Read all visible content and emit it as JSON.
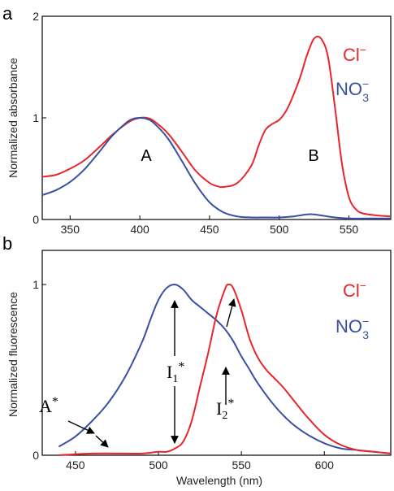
{
  "colors": {
    "red": "#e8262a",
    "blue": "#3a4fa3",
    "axis": "#000000"
  },
  "chart_data": [
    {
      "type": "line",
      "panel_label": "a",
      "xlabel": "",
      "ylabel": "Normalized absorbance",
      "xlim": [
        330,
        580
      ],
      "ylim": [
        0,
        2
      ],
      "xticks": [
        350,
        400,
        450,
        500,
        550
      ],
      "yticks": [
        0,
        1,
        2
      ],
      "legend": {
        "placement": "top-right",
        "entries": [
          {
            "label": "Cl",
            "superscript": "−",
            "subscript": "",
            "color": "#e8262a"
          },
          {
            "label": "NO",
            "superscript": "−",
            "subscript": "3",
            "color": "#3a4fa3"
          }
        ]
      },
      "annotations": [
        {
          "text": "A"
        },
        {
          "text": "B"
        }
      ],
      "series": [
        {
          "name": "Cl−",
          "color": "#e8262a",
          "x": [
            330,
            340,
            350,
            360,
            370,
            380,
            390,
            395,
            400,
            405,
            410,
            420,
            430,
            440,
            450,
            455,
            460,
            470,
            480,
            485,
            490,
            495,
            500,
            505,
            510,
            515,
            520,
            525,
            530,
            535,
            540,
            545,
            550,
            555,
            560,
            570,
            580
          ],
          "y": [
            0.42,
            0.44,
            0.5,
            0.58,
            0.7,
            0.83,
            0.94,
            0.98,
            1.0,
            1.0,
            0.97,
            0.85,
            0.67,
            0.48,
            0.36,
            0.33,
            0.32,
            0.36,
            0.53,
            0.72,
            0.88,
            0.94,
            0.98,
            1.07,
            1.22,
            1.4,
            1.62,
            1.78,
            1.78,
            1.6,
            1.1,
            0.55,
            0.22,
            0.1,
            0.06,
            0.04,
            0.03
          ]
        },
        {
          "name": "NO3−",
          "color": "#3a4fa3",
          "x": [
            330,
            340,
            350,
            360,
            370,
            380,
            390,
            395,
            400,
            405,
            410,
            420,
            430,
            440,
            450,
            460,
            470,
            480,
            490,
            500,
            510,
            520,
            525,
            530,
            540,
            550,
            560,
            570,
            580
          ],
          "y": [
            0.24,
            0.29,
            0.37,
            0.49,
            0.65,
            0.82,
            0.95,
            0.99,
            1.0,
            0.99,
            0.95,
            0.8,
            0.58,
            0.35,
            0.17,
            0.07,
            0.03,
            0.02,
            0.02,
            0.02,
            0.03,
            0.05,
            0.05,
            0.04,
            0.02,
            0.01,
            0.01,
            0.01,
            0.01
          ]
        }
      ]
    },
    {
      "type": "line",
      "panel_label": "b",
      "xlabel": "Wavelength (nm)",
      "ylabel": "Normalized fluorescence",
      "xlim": [
        430,
        640
      ],
      "ylim": [
        0,
        1.2
      ],
      "xticks": [
        450,
        500,
        550,
        600
      ],
      "yticks": [
        0,
        1
      ],
      "legend": {
        "placement": "top-right",
        "entries": [
          {
            "label": "Cl",
            "superscript": "−",
            "subscript": "",
            "color": "#e8262a"
          },
          {
            "label": "NO",
            "superscript": "−",
            "subscript": "3",
            "color": "#3a4fa3"
          }
        ]
      },
      "annotations": [
        {
          "text": "A",
          "superscript": "*"
        },
        {
          "text": "I",
          "subscript": "1",
          "superscript": "*"
        },
        {
          "text": "I",
          "subscript": "2",
          "superscript": "*"
        }
      ],
      "series": [
        {
          "name": "NO3−",
          "color": "#3a4fa3",
          "x": [
            440,
            450,
            460,
            470,
            480,
            490,
            495,
            500,
            505,
            510,
            515,
            520,
            525,
            530,
            535,
            540,
            545,
            550,
            555,
            560,
            570,
            580,
            590,
            600,
            610,
            620,
            630,
            640
          ],
          "y": [
            0.05,
            0.11,
            0.2,
            0.31,
            0.46,
            0.66,
            0.79,
            0.91,
            0.98,
            1.0,
            0.97,
            0.91,
            0.87,
            0.83,
            0.79,
            0.74,
            0.67,
            0.58,
            0.5,
            0.42,
            0.29,
            0.19,
            0.12,
            0.07,
            0.04,
            0.03,
            0.02,
            0.01
          ]
        },
        {
          "name": "Cl−",
          "color": "#e8262a",
          "x": [
            440,
            460,
            480,
            490,
            500,
            505,
            510,
            515,
            520,
            525,
            530,
            535,
            540,
            542,
            545,
            550,
            555,
            560,
            565,
            570,
            575,
            580,
            590,
            600,
            610,
            620,
            630,
            640
          ],
          "y": [
            0.0,
            0.01,
            0.01,
            0.01,
            0.02,
            0.02,
            0.04,
            0.08,
            0.2,
            0.4,
            0.6,
            0.82,
            0.97,
            1.0,
            0.98,
            0.85,
            0.68,
            0.57,
            0.5,
            0.45,
            0.4,
            0.34,
            0.22,
            0.12,
            0.06,
            0.03,
            0.02,
            0.01
          ]
        }
      ]
    }
  ]
}
